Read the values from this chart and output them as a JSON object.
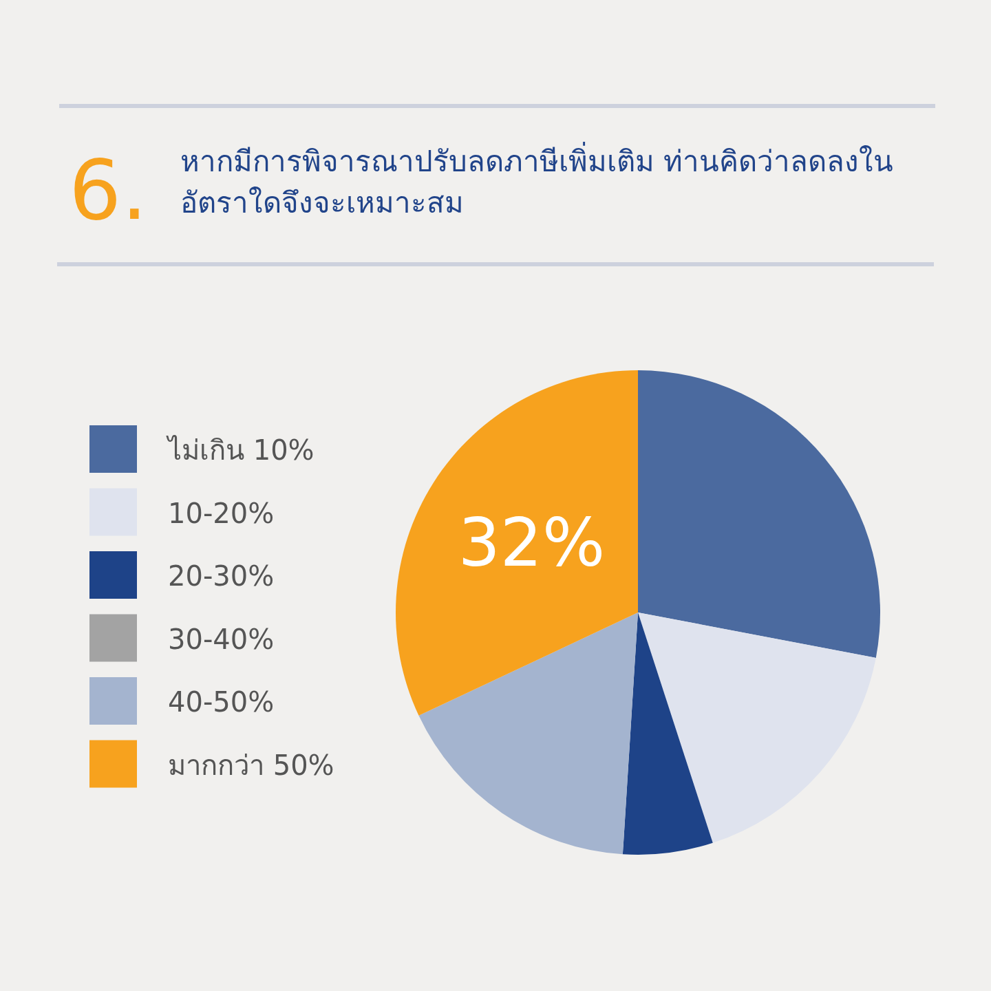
{
  "chart_data": {
    "type": "pie",
    "title": "หากมีการพิจารณาปรับลดภาษีเพิ่มเติม ท่านคิดว่าลดลงใน\nอัตราใดจึงจะเหมาะสม",
    "annotations": [
      "6."
    ],
    "categories": [
      "ไม่เกิน 10%",
      "10-20%",
      "20-30%",
      "30-40%",
      "40-50%",
      "มากกว่า 50%"
    ],
    "values": [
      28,
      17,
      6,
      0,
      17,
      32
    ],
    "colors": [
      "#4b6a9f",
      "#dfe3ee",
      "#1e4388",
      "#a3a3a3",
      "#a4b4cf",
      "#f7a21e"
    ],
    "value_labels": [
      null,
      null,
      null,
      null,
      null,
      "32%"
    ],
    "legend": "left"
  }
}
